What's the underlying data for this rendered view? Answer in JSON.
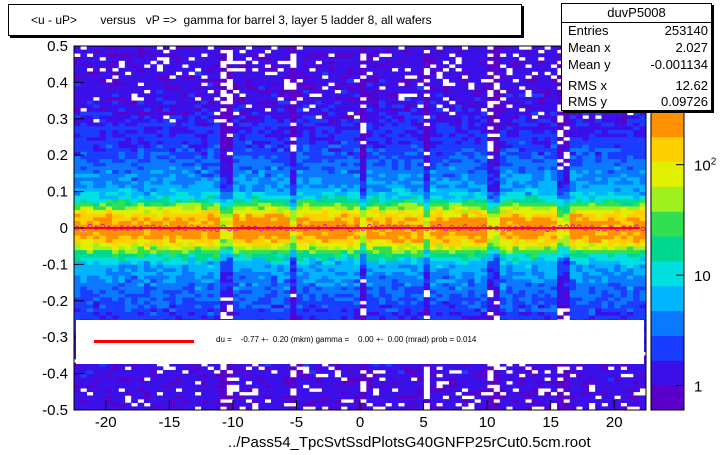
{
  "title": "<u - uP>       versus   vP =>  gamma for barrel 3, layer 5 ladder 8, all wafers",
  "stats": {
    "name": "duvP5008",
    "rows": [
      {
        "key": "Entries",
        "value": "253140"
      },
      {
        "key": "Mean x",
        "value": "2.027"
      },
      {
        "key": "Mean y",
        "value": "-0.001134"
      },
      {
        "key": "RMS x",
        "value": "12.62"
      },
      {
        "key": "RMS y",
        "value": "0.09726"
      }
    ]
  },
  "fit_legend": "du =    -0.77 +-  0.20 (mkm) gamma =    0.00 +-  0.00 (mrad) prob = 0.014",
  "footer": "../Pass54_TpcSvtSsdPlotsG40GNFP25rCut0.5cm.root",
  "chart_data": {
    "type": "heatmap",
    "xlim": [
      -22.5,
      22.5
    ],
    "ylim": [
      -0.5,
      0.5
    ],
    "x_ticks": [
      -20,
      -15,
      -10,
      -5,
      0,
      5,
      10,
      15,
      20
    ],
    "y_ticks": [
      -0.5,
      -0.4,
      -0.3,
      -0.2,
      -0.1,
      0,
      0.1,
      0.2,
      0.3,
      0.4,
      0.5
    ],
    "color_scale": "log",
    "z_ticks": [
      {
        "value": 1,
        "label": "1"
      },
      {
        "value": 10,
        "label": "10"
      },
      {
        "value": 100,
        "label": "10^2"
      }
    ],
    "zlim": [
      0.6,
      300
    ],
    "profile_mean_y": 0.0,
    "fit_line": {
      "y": 0.0,
      "color": "#ff0000"
    },
    "bands_with_gaps_at_x": [
      -10.5,
      -5.2,
      0.2,
      5.2,
      10.5,
      16.0
    ]
  },
  "colors": {
    "frame": "#000000",
    "fit": "#ff0000",
    "profile": "#cc00cc"
  }
}
